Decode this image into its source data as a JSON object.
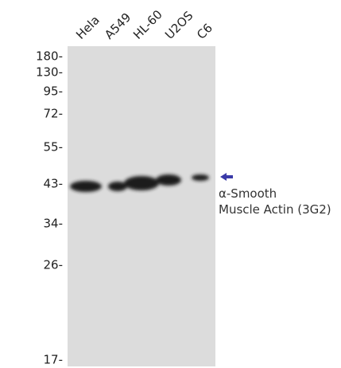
{
  "lanes": [
    "Hela",
    "A549",
    "HL-60",
    "U2OS",
    "C6"
  ],
  "markers": [
    "180-",
    "130-",
    "95-",
    "72-",
    "55-",
    "43-",
    "34-",
    "26-",
    "17-"
  ],
  "annotation": {
    "line1": "α-Smooth",
    "line2": "Muscle Actin (3G2)"
  }
}
